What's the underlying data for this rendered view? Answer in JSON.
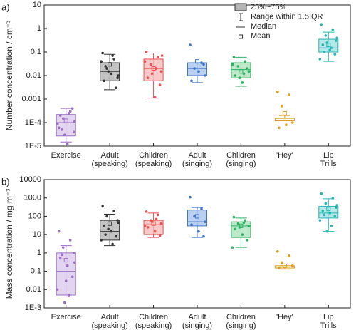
{
  "chart_data": [
    {
      "type": "box",
      "panel": "a)",
      "ylabel": "Number concentration / cm⁻³",
      "log": true,
      "legend": [
        "25%~75%",
        "Range within 1.5IQR",
        "Median",
        "Mean"
      ],
      "ylim": [
        1e-05,
        10
      ],
      "yticks": [
        {
          "value": 1e-05,
          "label": "1E-5"
        },
        {
          "value": 0.0001,
          "label": "1E-4"
        },
        0.001,
        0.01,
        0.1,
        1,
        10
      ],
      "categories": [
        [
          "Exercise"
        ],
        [
          "Adult",
          "(speaking)"
        ],
        [
          "Children",
          "(speaking)"
        ],
        [
          "Adult",
          "(singing)"
        ],
        [
          "Children",
          "(singing)"
        ],
        [
          "'Hey'"
        ],
        [
          "Lip",
          "Trills"
        ]
      ],
      "colors": [
        "#9b6fc6",
        "#333333",
        "#e85050",
        "#3f74c9",
        "#2fb060",
        "#d9a020",
        "#2ab5b5"
      ],
      "fills": [
        "#dccbec",
        "#b4b4b4",
        "#f7bcbc",
        "#a9c4ec",
        "#ace2bd",
        "#ffffff",
        "#a2e2e2"
      ],
      "boxes": [
        {
          "q1": 2.7e-05,
          "median": 0.0001,
          "q3": 0.00022,
          "whislo": 1.5e-05,
          "whishi": 0.0004,
          "mean": 0.00012,
          "points": [
            6e-05,
            0.0003,
            0.00015,
            4e-05,
            0.0002,
            1.2e-05,
            0.0004,
            9e-05,
            0.00025,
            3e-05,
            0.00011,
            5e-05
          ]
        },
        {
          "q1": 0.006,
          "median": 0.015,
          "q3": 0.035,
          "whislo": 0.0025,
          "whishi": 0.08,
          "mean": 0.03,
          "points": [
            0.09,
            0.05,
            0.02,
            0.008,
            0.006,
            0.012,
            0.003,
            0.04,
            0.07,
            0.015,
            0.01,
            0.025
          ]
        },
        {
          "q1": 0.006,
          "median": 0.02,
          "q3": 0.05,
          "whislo": 0.0011,
          "whishi": 0.09,
          "mean": 0.02,
          "points": [
            0.1,
            0.06,
            0.03,
            0.015,
            0.008,
            0.0012,
            0.004,
            0.04,
            0.02,
            0.012,
            0.07
          ]
        },
        {
          "q1": 0.01,
          "median": 0.02,
          "q3": 0.035,
          "whislo": 0.005,
          "whishi": 0.035,
          "mean": 0.04,
          "points": [
            0.2,
            0.035,
            0.02,
            0.01,
            0.006,
            0.015,
            0.03
          ]
        },
        {
          "q1": 0.008,
          "median": 0.018,
          "q3": 0.035,
          "whislo": 0.0035,
          "whishi": 0.06,
          "mean": 0.015,
          "points": [
            0.06,
            0.04,
            0.025,
            0.015,
            0.01,
            0.005,
            0.02,
            0.03,
            0.012,
            0.008
          ]
        },
        {
          "q1": 0.00012,
          "median": 0.00012,
          "q3": 0.00015,
          "whislo": 0.00012,
          "whishi": 0.0002,
          "mean": 0.00025,
          "points": [
            0.002,
            0.0015,
            0.0005,
            0.0001,
            6e-05,
            8e-05
          ]
        },
        {
          "q1": 0.1,
          "median": 0.15,
          "q3": 0.35,
          "whislo": 0.04,
          "whishi": 0.7,
          "mean": 0.2,
          "points": [
            1.5,
            0.9,
            0.5,
            0.3,
            0.2,
            0.12,
            0.08,
            0.05,
            0.15,
            0.25,
            0.4,
            0.1
          ]
        }
      ]
    },
    {
      "type": "box",
      "panel": "b)",
      "ylabel": "Mass concentration / mg m⁻³",
      "log": true,
      "ylim": [
        0.001,
        10000
      ],
      "yticks": [
        {
          "value": 0.001,
          "label": "1E-3"
        },
        0.01,
        0.1,
        1,
        10,
        100,
        1000,
        10000
      ],
      "categories": [
        [
          "Exercise"
        ],
        [
          "Adult",
          "(speaking)"
        ],
        [
          "Children",
          "(speaking)"
        ],
        [
          "Adult",
          "(singing)"
        ],
        [
          "Children",
          "(singing)"
        ],
        [
          "'Hey'"
        ],
        [
          "Lip",
          "Trills"
        ]
      ],
      "colors": [
        "#9b6fc6",
        "#333333",
        "#e85050",
        "#3f74c9",
        "#2fb060",
        "#d9a020",
        "#2ab5b5"
      ],
      "fills": [
        "#dccbec",
        "#b4b4b4",
        "#f7bcbc",
        "#a9c4ec",
        "#ace2bd",
        "#ffffff",
        "#a2e2e2"
      ],
      "boxes": [
        {
          "q1": 0.005,
          "median": 0.1,
          "q3": 1,
          "whislo": 0.004,
          "whishi": 2.5,
          "mean": 0.4,
          "points": [
            15,
            5,
            2,
            1,
            0.5,
            0.2,
            0.05,
            0.01,
            0.005,
            0.002,
            0.3,
            0.8,
            0.03
          ]
        },
        {
          "q1": 5,
          "median": 15,
          "q3": 60,
          "whislo": 2.5,
          "whishi": 130,
          "mean": 40,
          "points": [
            350,
            200,
            100,
            60,
            30,
            15,
            8,
            5,
            3,
            20,
            45,
            10
          ]
        },
        {
          "q1": 10,
          "median": 35,
          "q3": 60,
          "whislo": 7,
          "whishi": 150,
          "mean": 40,
          "points": [
            180,
            120,
            60,
            40,
            25,
            15,
            9,
            30,
            70,
            50
          ]
        },
        {
          "q1": 30,
          "median": 50,
          "q3": 220,
          "whislo": 7,
          "whishi": 300,
          "mean": 100,
          "points": [
            1100,
            250,
            100,
            50,
            35,
            15,
            8
          ]
        },
        {
          "q1": 7,
          "median": 30,
          "q3": 50,
          "whislo": 2,
          "whishi": 80,
          "mean": 30,
          "points": [
            90,
            60,
            40,
            30,
            20,
            10,
            5,
            2,
            45,
            25
          ]
        },
        {
          "q1": 0.15,
          "median": 0.15,
          "q3": 0.2,
          "whislo": 0.13,
          "whishi": 0.2,
          "mean": 0.2,
          "points": [
            1.2,
            0.7,
            0.3,
            0.2,
            0.15
          ]
        },
        {
          "q1": 80,
          "median": 150,
          "q3": 350,
          "whislo": 15,
          "whishi": 900,
          "mean": 250,
          "points": [
            1700,
            1000,
            500,
            300,
            200,
            150,
            100,
            60,
            30,
            15,
            400,
            120
          ]
        }
      ]
    }
  ]
}
